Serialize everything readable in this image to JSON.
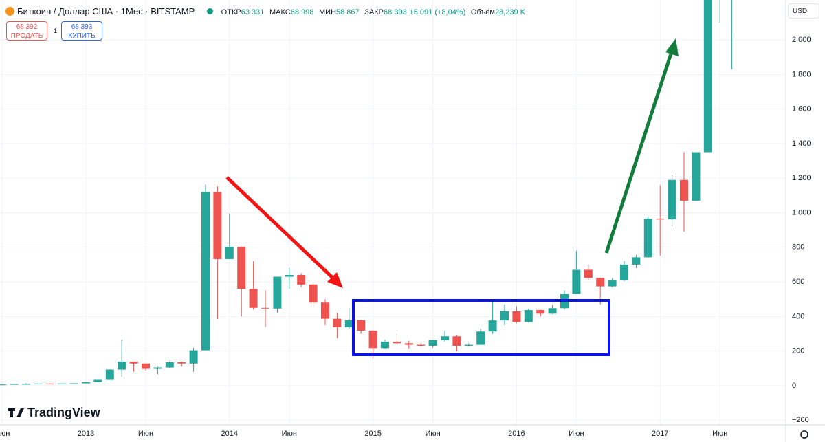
{
  "header": {
    "symbol": "Биткоин / Доллар США · 1Мес · BITSTAMP",
    "open_label": "ОТКР",
    "open": "63 331",
    "high_label": "МАКС",
    "high": "68 998",
    "low_label": "МИН",
    "low": "58 867",
    "close_label": "ЗАКР",
    "close": "68 393",
    "change": "+5 091 (+8,04%)",
    "volume_label": "Объём",
    "volume": "28,239 K"
  },
  "trade": {
    "sell_price": "68 392",
    "sell": "ПРОДАТЬ",
    "quantity": "1",
    "buy_price": "68 393",
    "buy": "КУПИТЬ"
  },
  "currency": "USD",
  "brand": "TradingView",
  "chart_data": {
    "type": "candlestick",
    "x": [
      "2012-06",
      "2012-07",
      "2012-08",
      "2012-09",
      "2012-10",
      "2012-11",
      "2012-12",
      "2013-01",
      "2013-02",
      "2013-03",
      "2013-04",
      "2013-05",
      "2013-06",
      "2013-07",
      "2013-08",
      "2013-09",
      "2013-10",
      "2013-11",
      "2013-12",
      "2014-01",
      "2014-02",
      "2014-03",
      "2014-04",
      "2014-05",
      "2014-06",
      "2014-07",
      "2014-08",
      "2014-09",
      "2014-10",
      "2014-11",
      "2014-12",
      "2015-01",
      "2015-02",
      "2015-03",
      "2015-04",
      "2015-05",
      "2015-06",
      "2015-07",
      "2015-08",
      "2015-09",
      "2015-10",
      "2015-11",
      "2015-12",
      "2016-01",
      "2016-02",
      "2016-03",
      "2016-04",
      "2016-05",
      "2016-06",
      "2016-07",
      "2016-08",
      "2016-09",
      "2016-10",
      "2016-11",
      "2016-12",
      "2017-01",
      "2017-02",
      "2017-03",
      "2017-04",
      "2017-05",
      "2017-06",
      "2017-07"
    ],
    "open": [
      5.3,
      6.7,
      9.4,
      10,
      12.4,
      11.2,
      12.6,
      13.5,
      20.4,
      33.4,
      93,
      139,
      128,
      97,
      105,
      135,
      128,
      204,
      1120,
      732,
      803,
      560,
      450,
      446,
      630,
      640,
      585,
      480,
      387,
      338,
      378,
      318,
      217,
      254,
      245,
      236,
      230,
      263,
      285,
      230,
      236,
      313,
      377,
      430,
      368,
      437,
      416,
      448,
      531,
      670,
      623,
      574,
      608,
      700,
      742,
      965,
      962,
      1190,
      1070,
      1350,
      2290,
      2480
    ],
    "high": [
      7,
      9.5,
      15,
      12.5,
      12.9,
      12.8,
      14,
      21,
      33.5,
      95,
      266,
      140,
      129,
      110,
      140,
      140,
      220,
      1163,
      1153,
      995,
      805,
      720,
      550,
      630,
      680,
      650,
      600,
      500,
      420,
      450,
      380,
      320,
      265,
      300,
      260,
      245,
      265,
      315,
      290,
      245,
      330,
      500,
      470,
      460,
      445,
      440,
      467,
      550,
      780,
      700,
      625,
      620,
      720,
      755,
      980,
      1160,
      1220,
      1350,
      1350,
      2760,
      3000,
      2900
    ],
    "low": [
      5,
      6.5,
      7,
      10,
      10,
      10,
      12.6,
      13,
      19,
      33,
      50,
      80,
      88,
      65,
      100,
      110,
      80,
      204,
      385,
      730,
      400,
      440,
      340,
      420,
      560,
      570,
      450,
      350,
      275,
      330,
      300,
      160,
      215,
      240,
      215,
      225,
      220,
      255,
      199,
      225,
      236,
      300,
      350,
      360,
      365,
      400,
      413,
      440,
      530,
      610,
      470,
      570,
      605,
      680,
      740,
      752,
      920,
      890,
      1070,
      1350,
      2100,
      1830
    ],
    "close": [
      6.7,
      9.4,
      10,
      12.4,
      11.2,
      12.6,
      13.5,
      20.4,
      33.4,
      93,
      139,
      128,
      97,
      105,
      135,
      128,
      204,
      1120,
      732,
      803,
      560,
      450,
      446,
      630,
      640,
      585,
      480,
      387,
      338,
      378,
      318,
      217,
      254,
      245,
      236,
      230,
      263,
      285,
      230,
      236,
      313,
      377,
      430,
      368,
      437,
      416,
      448,
      531,
      670,
      623,
      574,
      608,
      700,
      742,
      965,
      962,
      1190,
      1070,
      1350,
      2290,
      2480,
      2870
    ],
    "up_color": "#26a69a",
    "down_color": "#ef5350",
    "ylim": [
      -227,
      2231
    ],
    "yticks": [
      {
        "value": -200,
        "label": "−200"
      },
      0,
      200,
      400,
      600,
      800,
      {
        "value": 1000,
        "label": "1 000"
      },
      {
        "value": 1200,
        "label": "1 200"
      },
      {
        "value": 1400,
        "label": "1 400"
      },
      {
        "value": 1600,
        "label": "1 600"
      },
      {
        "value": 1800,
        "label": "1 800"
      },
      {
        "value": 2000,
        "label": "2 000"
      }
    ],
    "xticks": [
      {
        "value": "2012-06",
        "label": "Июн"
      },
      {
        "value": "2013-01",
        "label": "2013"
      },
      {
        "value": "2013-06",
        "label": "Июн"
      },
      {
        "value": "2014-01",
        "label": "2014"
      },
      {
        "value": "2014-06",
        "label": "Июн"
      },
      {
        "value": "2015-01",
        "label": "2015"
      },
      {
        "value": "2015-06",
        "label": "Июн"
      },
      {
        "value": "2016-01",
        "label": "2016"
      },
      {
        "value": "2016-06",
        "label": "Июн"
      },
      {
        "value": "2017-01",
        "label": "2017"
      },
      {
        "value": "2017-06",
        "label": "Июн"
      }
    ],
    "grid": true
  }
}
